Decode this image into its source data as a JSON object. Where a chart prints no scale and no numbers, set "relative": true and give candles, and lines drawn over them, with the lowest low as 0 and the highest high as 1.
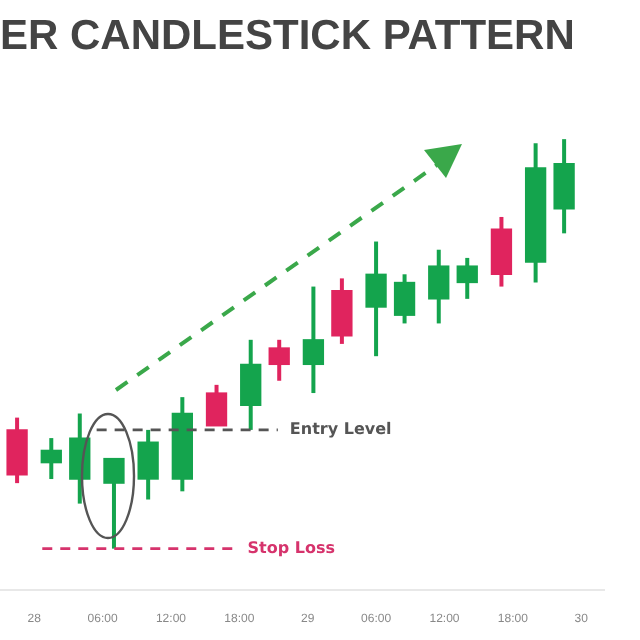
{
  "chart_data": {
    "type": "candlestick",
    "title": "ER CANDLESTICK PATTERN",
    "relative": true,
    "tick_labels": "x",
    "x": [
      "--01-27T22:30",
      "--01-28T01:30",
      "--01-28T04:00",
      "--01-28T07:00",
      "--01-28T10:00",
      "--01-28T13:00",
      "--01-28T16:00",
      "--01-28T19:00",
      "--01-28T21:30",
      "--01-29T00:30",
      "--01-29T03:00",
      "--01-29T06:00",
      "--01-29T08:30",
      "--01-29T11:30",
      "--01-29T14:00",
      "--01-29T17:00",
      "--01-29T20:00",
      "--01-29T22:30"
    ],
    "ohlc": [
      [
        0.29,
        0.32,
        0.16,
        0.18
      ],
      [
        0.21,
        0.27,
        0.17,
        0.24
      ],
      [
        0.17,
        0.33,
        0.11,
        0.27
      ],
      [
        0.16,
        0.22,
        0,
        0.22
      ],
      [
        0.17,
        0.29,
        0.12,
        0.26
      ],
      [
        0.17,
        0.37,
        0.14,
        0.33
      ],
      [
        0.38,
        0.4,
        0.3,
        0.3
      ],
      [
        0.35,
        0.51,
        0.29,
        0.45
      ],
      [
        0.49,
        0.51,
        0.41,
        0.45
      ],
      [
        0.45,
        0.64,
        0.38,
        0.51
      ],
      [
        0.63,
        0.66,
        0.5,
        0.52
      ],
      [
        0.59,
        0.75,
        0.47,
        0.67
      ],
      [
        0.57,
        0.67,
        0.55,
        0.65
      ],
      [
        0.61,
        0.73,
        0.55,
        0.69
      ],
      [
        0.65,
        0.71,
        0.61,
        0.69
      ],
      [
        0.78,
        0.81,
        0.64,
        0.67
      ],
      [
        0.7,
        0.99,
        0.65,
        0.93
      ],
      [
        0.83,
        1,
        0.77,
        0.94
      ]
    ],
    "colors": [
      "#e0245e",
      "#14a44d",
      "#14a44d",
      "#14a44d",
      "#14a44d",
      "#14a44d",
      "#e0245e",
      "#14a44d",
      "#e0245e",
      "#14a44d",
      "#e0245e",
      "#14a44d",
      "#14a44d",
      "#14a44d",
      "#14a44d",
      "#e0245e",
      "#14a44d",
      "#14a44d"
    ],
    "xlim": [
      "--01-27T21:00",
      "--01-30T02:00"
    ],
    "xticks": [
      {
        "value": "--01-28",
        "label": "28"
      },
      {
        "value": "--01-28T06:00",
        "label": "06:00"
      },
      {
        "value": "--01-28T12:00",
        "label": "12:00"
      },
      {
        "value": "--01-28T18:00",
        "label": "18:00"
      },
      {
        "value": "--01-29",
        "label": "29"
      },
      {
        "value": "--01-29T06:00",
        "label": "06:00"
      },
      {
        "value": "--01-29T12:00",
        "label": "12:00"
      },
      {
        "value": "--01-29T18:00",
        "label": "18:00"
      },
      {
        "value": "--01-30",
        "label": "30"
      }
    ],
    "ref_lines": [
      {
        "axis": "y",
        "value": 0.29,
        "label": "Entry Level",
        "color": "#555555",
        "line_style": "dashed"
      },
      {
        "axis": "y",
        "value": 0,
        "label": "Stop Loss",
        "color": "#d6336c",
        "line_style": "dashed"
      }
    ]
  }
}
